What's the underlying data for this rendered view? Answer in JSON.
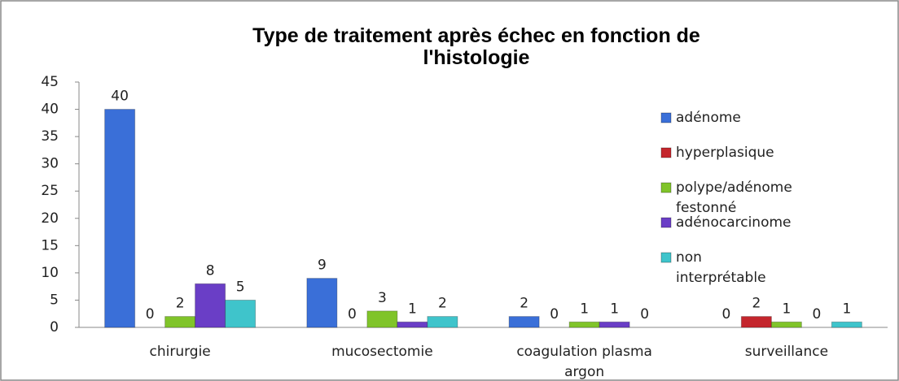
{
  "chart_data": {
    "type": "bar",
    "title": "Type de traitement après échec en fonction de l'histologie",
    "categories": [
      "chirurgie",
      "mucosectomie",
      "coagulation plasma argon",
      "surveillance"
    ],
    "series": [
      {
        "name": "adénome",
        "color": "#3a6fd8",
        "values": [
          40,
          9,
          2,
          0
        ]
      },
      {
        "name": "hyperplasique",
        "color": "#c4262d",
        "values": [
          0,
          0,
          0,
          2
        ]
      },
      {
        "name": "polype/adénome festonné",
        "color": "#80c42a",
        "values": [
          2,
          3,
          1,
          1
        ]
      },
      {
        "name": "adénocarcinome",
        "color": "#6a3ec6",
        "values": [
          8,
          1,
          1,
          0
        ]
      },
      {
        "name": "non interprétable",
        "color": "#3fc4cb",
        "values": [
          5,
          2,
          0,
          1
        ]
      }
    ],
    "ylim": [
      0,
      45
    ],
    "yticks": [
      0,
      5,
      10,
      15,
      20,
      25,
      30,
      35,
      40,
      45
    ],
    "grid": false,
    "legend": "right"
  }
}
